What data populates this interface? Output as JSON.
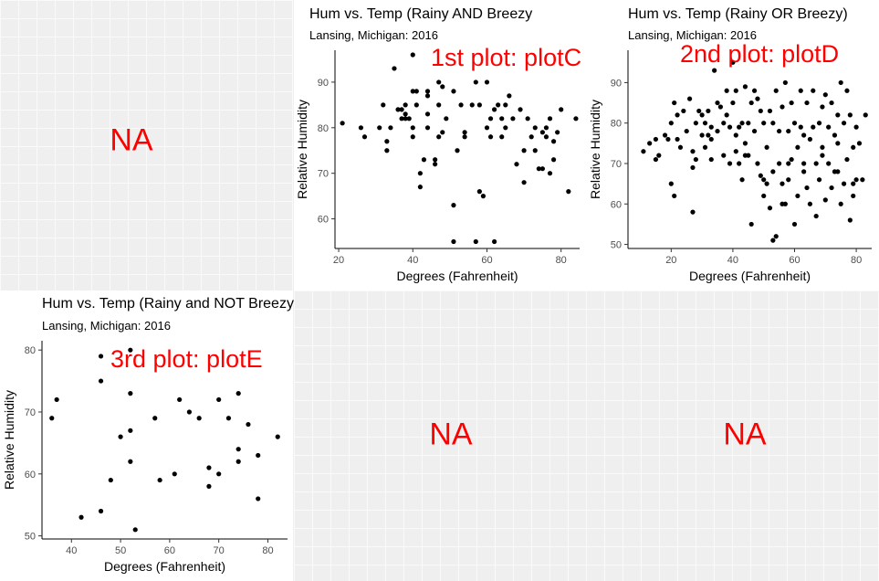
{
  "placeholders": {
    "top_left": "NA",
    "bottom_middle": "NA",
    "bottom_right": "NA"
  },
  "colors": {
    "annotation": "#ff0000",
    "points": "#000000",
    "panel_bg": "#efefef"
  },
  "chart_data": [
    {
      "id": "plotC",
      "type": "scatter",
      "title": "Hum vs. Temp (Rainy AND Breezy",
      "subtitle": "Lansing, Michigan: 2016",
      "annotation": "1st plot: plotC",
      "xlabel": "Degrees (Fahrenheit)",
      "ylabel": "Relative Humidity",
      "xlim": [
        19,
        85
      ],
      "ylim": [
        53.5,
        97
      ],
      "xticks": [
        20,
        40,
        60,
        80
      ],
      "yticks": [
        60,
        70,
        80,
        90
      ],
      "grid": false,
      "x": [
        21,
        26,
        27,
        31,
        32,
        33,
        33,
        34,
        35,
        36,
        37,
        37,
        38,
        38,
        38,
        39,
        40,
        40,
        40,
        41,
        41,
        42,
        42,
        43,
        44,
        44,
        44,
        44,
        46,
        46,
        47,
        47,
        48,
        48,
        49,
        51,
        51,
        51,
        52,
        53,
        54,
        54,
        56,
        57,
        58,
        58,
        59,
        60,
        60,
        61,
        61,
        62,
        62,
        63,
        64,
        64,
        65,
        65,
        66,
        67,
        68,
        69,
        70,
        70,
        71,
        72,
        73,
        73,
        74,
        75,
        75,
        76,
        76,
        77,
        77,
        78,
        78,
        79,
        80,
        82,
        84,
        40,
        47,
        57
      ],
      "y": [
        81,
        80,
        78,
        80,
        85,
        77,
        75,
        80,
        93,
        84,
        82,
        84,
        82,
        83,
        85,
        82,
        88,
        80,
        78,
        88,
        85,
        70,
        67,
        73,
        88,
        87,
        80,
        83,
        73,
        72,
        90,
        85,
        89,
        79,
        82,
        88,
        63,
        55,
        75,
        85,
        79,
        78,
        85,
        90,
        85,
        66,
        65,
        90,
        80,
        82,
        78,
        84,
        55,
        85,
        78,
        82,
        85,
        80,
        87,
        82,
        72,
        84,
        75,
        68,
        82,
        78,
        80,
        75,
        71,
        79,
        71,
        80,
        78,
        82,
        70,
        77,
        73,
        79,
        84,
        66,
        82,
        96,
        78,
        55
      ]
    },
    {
      "id": "plotD",
      "type": "scatter",
      "title": "Hum vs. Temp (Rainy OR Breezy)",
      "subtitle": "Lansing, Michigan: 2016",
      "annotation": "2nd plot: plotD",
      "xlabel": "Degrees (Fahrenheit)",
      "ylabel": "Relative Humidity",
      "xlim": [
        6,
        85
      ],
      "ylim": [
        49,
        98
      ],
      "xticks": [
        20,
        40,
        60,
        80
      ],
      "yticks": [
        50,
        60,
        70,
        80,
        90
      ],
      "grid": false,
      "x": [
        11,
        13,
        15,
        15,
        16,
        18,
        19,
        20,
        20,
        21,
        22,
        22,
        23,
        24,
        25,
        26,
        27,
        27,
        28,
        28,
        29,
        30,
        30,
        31,
        31,
        32,
        32,
        33,
        33,
        34,
        35,
        35,
        36,
        37,
        37,
        38,
        38,
        39,
        39,
        40,
        40,
        41,
        41,
        42,
        42,
        43,
        43,
        44,
        44,
        45,
        45,
        46,
        46,
        47,
        47,
        48,
        48,
        49,
        49,
        50,
        50,
        51,
        51,
        52,
        52,
        53,
        53,
        54,
        54,
        55,
        55,
        56,
        56,
        57,
        57,
        58,
        58,
        59,
        59,
        60,
        60,
        61,
        61,
        62,
        62,
        63,
        63,
        64,
        64,
        65,
        65,
        66,
        66,
        67,
        67,
        68,
        68,
        69,
        69,
        70,
        70,
        71,
        71,
        72,
        72,
        73,
        73,
        74,
        74,
        75,
        75,
        76,
        76,
        77,
        77,
        78,
        78,
        79,
        79,
        80,
        80,
        81,
        82,
        83,
        33,
        41,
        50,
        56,
        21,
        27,
        44,
        53,
        58,
        63,
        69,
        74,
        79
      ],
      "y": [
        73,
        75,
        71,
        76,
        72,
        77,
        76,
        80,
        65,
        62,
        82,
        76,
        74,
        83,
        78,
        86,
        73,
        58,
        80,
        71,
        83,
        82,
        77,
        80,
        74,
        83,
        77,
        79,
        71,
        93,
        85,
        78,
        84,
        80,
        72,
        82,
        88,
        79,
        70,
        95,
        85,
        88,
        77,
        79,
        70,
        80,
        66,
        75,
        89,
        80,
        72,
        85,
        55,
        78,
        88,
        86,
        70,
        83,
        67,
        80,
        62,
        74,
        65,
        83,
        59,
        80,
        68,
        52,
        88,
        78,
        70,
        84,
        65,
        90,
        60,
        78,
        66,
        85,
        71,
        80,
        55,
        74,
        62,
        88,
        79,
        70,
        68,
        85,
        64,
        76,
        60,
        88,
        79,
        70,
        57,
        80,
        66,
        84,
        72,
        61,
        87,
        79,
        70,
        64,
        85,
        77,
        68,
        82,
        75,
        60,
        90,
        80,
        65,
        88,
        71,
        56,
        82,
        74,
        62,
        79,
        66,
        75,
        66,
        82,
        76,
        73,
        66,
        60,
        85,
        69,
        72,
        51,
        70,
        77,
        74,
        68,
        65
      ]
    },
    {
      "id": "plotE",
      "type": "scatter",
      "title": "Hum vs. Temp (Rainy and NOT Breezy)",
      "subtitle": "Lansing, Michigan: 2016",
      "annotation": "3rd plot: plotE",
      "xlabel": "Degrees (Fahrenheit)",
      "ylabel": "Relative Humidity",
      "xlim": [
        34,
        84
      ],
      "ylim": [
        49.5,
        81.5
      ],
      "xticks": [
        40,
        50,
        60,
        70,
        80
      ],
      "yticks": [
        50,
        60,
        70,
        80
      ],
      "grid": false,
      "x": [
        36,
        37,
        42,
        46,
        46,
        46,
        48,
        50,
        52,
        52,
        52,
        52,
        53,
        57,
        58,
        61,
        62,
        64,
        66,
        68,
        68,
        70,
        70,
        72,
        74,
        74,
        74,
        76,
        78,
        78,
        82
      ],
      "y": [
        69,
        72,
        53,
        54,
        75,
        79,
        59,
        66,
        80,
        73,
        67,
        62,
        51,
        69,
        59,
        60,
        72,
        70,
        69,
        61,
        58,
        72,
        60,
        69,
        64,
        62,
        73,
        68,
        56,
        63,
        66
      ]
    }
  ]
}
